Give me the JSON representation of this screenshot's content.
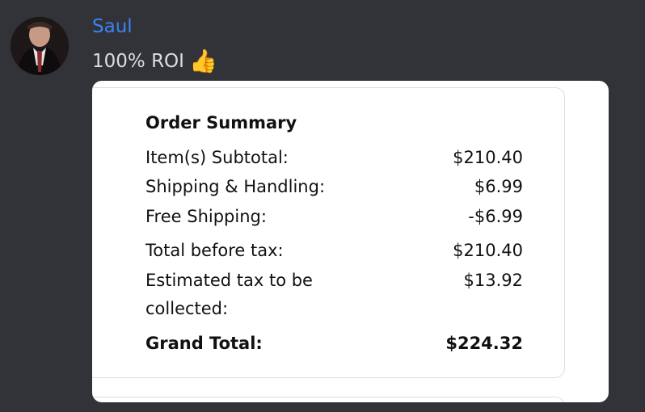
{
  "message": {
    "username": "Saul",
    "text": "100% ROI",
    "emoji": "👍",
    "username_color": "#3b82f0"
  },
  "order_summary": {
    "title": "Order Summary",
    "rows": [
      {
        "label": "Item(s) Subtotal:",
        "value": "$210.40"
      },
      {
        "label": "Shipping & Handling:",
        "value": "$6.99"
      },
      {
        "label": "Free Shipping:",
        "value": "-$6.99"
      },
      {
        "label": "Total before tax:",
        "value": "$210.40"
      },
      {
        "label": "Estimated tax to be",
        "value": "$13.92"
      },
      {
        "label": "collected:",
        "value": ""
      }
    ],
    "grand_total": {
      "label": "Grand Total:",
      "value": "$224.32"
    }
  }
}
